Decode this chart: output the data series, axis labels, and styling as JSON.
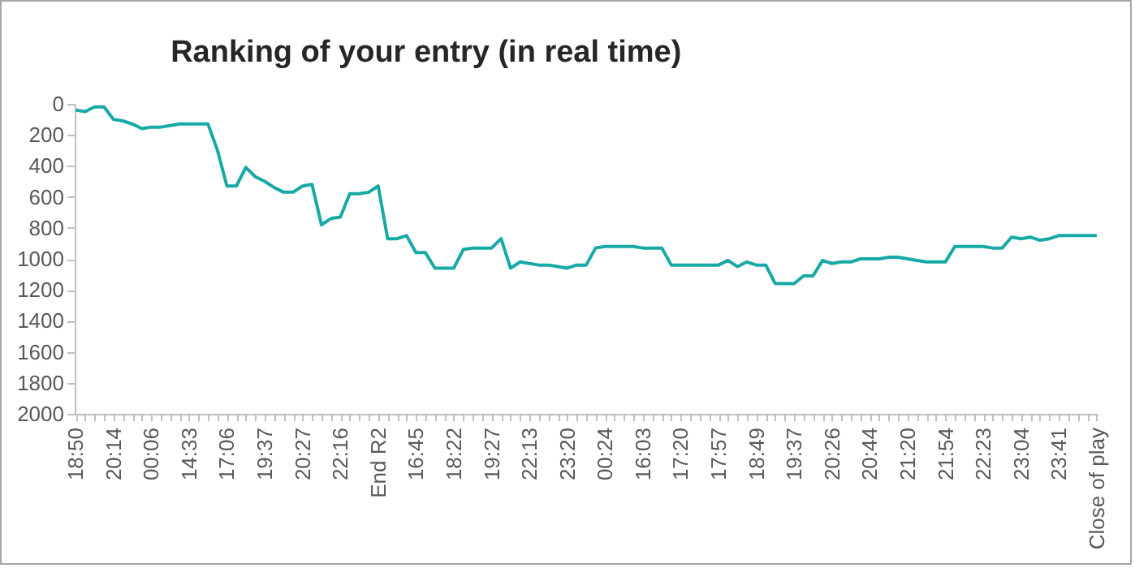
{
  "chart_data": {
    "type": "line",
    "title": "Ranking of your entry (in real time)",
    "categories": [
      "18:50",
      null,
      null,
      null,
      "20:14",
      null,
      null,
      null,
      "00:06",
      null,
      null,
      null,
      "14:33",
      null,
      null,
      null,
      "17:06",
      null,
      null,
      null,
      "19:37",
      null,
      null,
      null,
      "20:27",
      null,
      null,
      null,
      "22:16",
      null,
      null,
      null,
      "End R2",
      null,
      null,
      null,
      "16:45",
      null,
      null,
      null,
      "18:22",
      null,
      null,
      null,
      "19:27",
      null,
      null,
      null,
      "22:13",
      null,
      null,
      null,
      "23:20",
      null,
      null,
      null,
      "00:24",
      null,
      null,
      null,
      "16:03",
      null,
      null,
      null,
      "17:20",
      null,
      null,
      null,
      "17:57",
      null,
      null,
      null,
      "18:49",
      null,
      null,
      null,
      "19:37",
      null,
      null,
      null,
      "20:26",
      null,
      null,
      null,
      "20:44",
      null,
      null,
      null,
      "21:20",
      null,
      null,
      null,
      "21:54",
      null,
      null,
      null,
      "22:23",
      null,
      null,
      null,
      "23:04",
      null,
      null,
      null,
      "23:41",
      null,
      null,
      null,
      "Close of play"
    ],
    "series": [
      {
        "color": "#17a9a6",
        "values": [
          40,
          50,
          20,
          20,
          100,
          110,
          130,
          160,
          150,
          150,
          140,
          130,
          130,
          130,
          130,
          300,
          530,
          530,
          410,
          470,
          500,
          540,
          570,
          570,
          530,
          520,
          780,
          740,
          730,
          580,
          580,
          570,
          530,
          870,
          870,
          850,
          960,
          960,
          1060,
          1060,
          1060,
          940,
          930,
          930,
          930,
          870,
          1060,
          1020,
          1030,
          1040,
          1040,
          1050,
          1060,
          1040,
          1040,
          930,
          920,
          920,
          920,
          920,
          930,
          930,
          930,
          1040,
          1040,
          1040,
          1040,
          1040,
          1040,
          1010,
          1050,
          1020,
          1040,
          1040,
          1160,
          1160,
          1160,
          1110,
          1110,
          1010,
          1030,
          1020,
          1020,
          1000,
          1000,
          1000,
          990,
          990,
          1000,
          1010,
          1020,
          1020,
          1020,
          920,
          920,
          920,
          920,
          930,
          930,
          860,
          870,
          860,
          880,
          870,
          850,
          850,
          850,
          850,
          850
        ]
      }
    ],
    "ylim": [
      2000,
      0
    ],
    "yticks": [
      0,
      200,
      400,
      600,
      800,
      1000,
      1200,
      1400,
      1600,
      1800,
      2000
    ],
    "grid": false
  }
}
